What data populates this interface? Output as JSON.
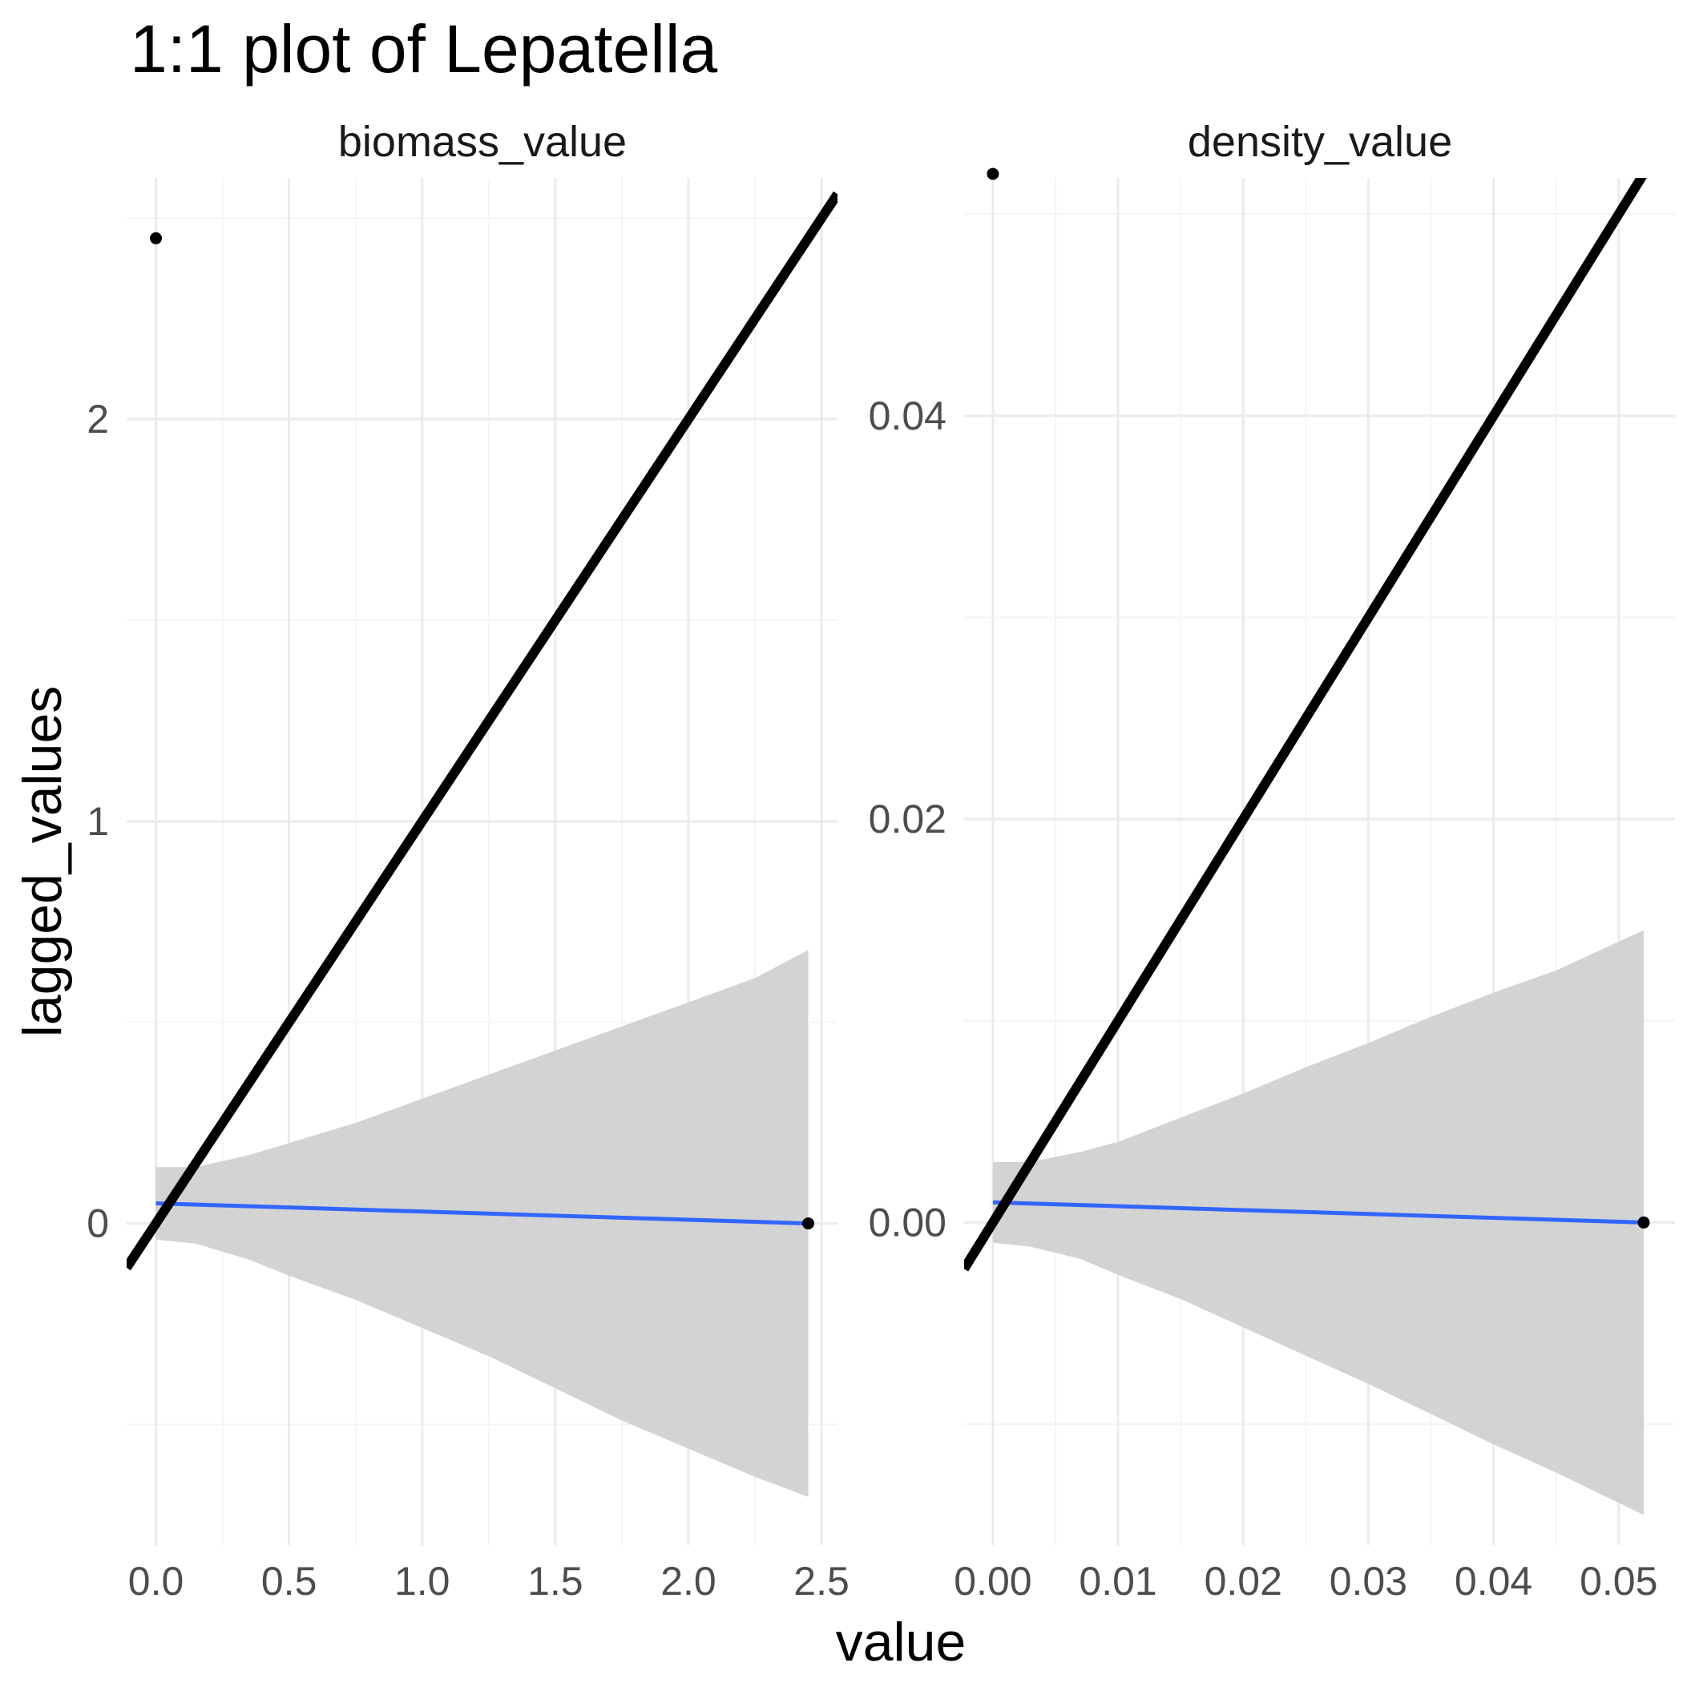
{
  "title": "1:1 plot of Lepatella",
  "x_axis_title": "value",
  "y_axis_title": "lagged_values",
  "colors": {
    "panel_bg": "#ffffff",
    "grid_major": "#ebebeb",
    "grid_minor": "#f4f4f4",
    "ribbon": "#d3d3d3",
    "smooth_line": "#3366ff",
    "identity_line": "#000000",
    "points": "#000000"
  },
  "chart_data": [
    {
      "type": "scatter",
      "facet": "biomass_value",
      "xlim": [
        -0.11,
        2.56
      ],
      "ylim": [
        -0.8,
        2.6
      ],
      "x_ticks": [
        0.0,
        0.5,
        1.0,
        1.5,
        2.0,
        2.5
      ],
      "x_tick_labels": [
        "0.0",
        "0.5",
        "1.0",
        "1.5",
        "2.0",
        "2.5"
      ],
      "y_ticks": [
        0,
        1,
        2
      ],
      "y_tick_labels": [
        "0",
        "1",
        "2"
      ],
      "y_minor": [
        -0.5,
        0.5,
        1.5,
        2.5
      ],
      "points": [
        {
          "x": 0.0,
          "y": 2.45
        },
        {
          "x": 2.45,
          "y": 0.0
        }
      ],
      "identity_line": {
        "slope": 1,
        "intercept": 0
      },
      "smooth_line": {
        "x": [
          0.0,
          2.45
        ],
        "y": [
          0.05,
          0.0
        ]
      },
      "confidence_band": {
        "x": [
          0.0,
          0.15,
          0.35,
          0.5,
          0.75,
          1.0,
          1.25,
          1.5,
          1.75,
          2.0,
          2.25,
          2.45
        ],
        "upper": [
          0.14,
          0.14,
          0.17,
          0.2,
          0.25,
          0.31,
          0.37,
          0.43,
          0.49,
          0.55,
          0.61,
          0.68
        ],
        "lower": [
          -0.04,
          -0.05,
          -0.09,
          -0.13,
          -0.19,
          -0.26,
          -0.33,
          -0.41,
          -0.49,
          -0.56,
          -0.63,
          -0.68
        ]
      },
      "grid": true
    },
    {
      "type": "scatter",
      "facet": "density_value",
      "xlim": [
        -0.0023,
        0.0545
      ],
      "ylim": [
        -0.016,
        0.0518
      ],
      "x_ticks": [
        0.0,
        0.01,
        0.02,
        0.03,
        0.04,
        0.05
      ],
      "x_tick_labels": [
        "0.00",
        "0.01",
        "0.02",
        "0.03",
        "0.04",
        "0.05"
      ],
      "y_ticks": [
        0.0,
        0.02,
        0.04
      ],
      "y_tick_labels": [
        "0.00",
        "0.02",
        "0.04"
      ],
      "y_minor": [
        -0.01,
        0.01,
        0.03,
        0.05
      ],
      "points": [
        {
          "x": 0.0,
          "y": 0.052
        },
        {
          "x": 0.052,
          "y": 0.0
        }
      ],
      "identity_line": {
        "slope": 1,
        "intercept": 0
      },
      "smooth_line": {
        "x": [
          0.0,
          0.052
        ],
        "y": [
          0.001,
          0.0
        ]
      },
      "confidence_band": {
        "x": [
          0.0,
          0.003,
          0.007,
          0.01,
          0.015,
          0.02,
          0.025,
          0.03,
          0.035,
          0.04,
          0.045,
          0.052
        ],
        "upper": [
          0.003,
          0.003,
          0.0035,
          0.004,
          0.0052,
          0.0064,
          0.0077,
          0.0089,
          0.0102,
          0.0114,
          0.0125,
          0.0145
        ],
        "lower": [
          -0.001,
          -0.0012,
          -0.0018,
          -0.0026,
          -0.0038,
          -0.0052,
          -0.0066,
          -0.008,
          -0.0095,
          -0.011,
          -0.0124,
          -0.0145
        ]
      },
      "grid": true
    }
  ]
}
